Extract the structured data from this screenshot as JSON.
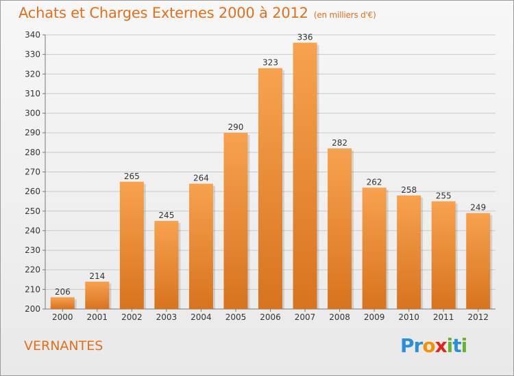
{
  "header": {
    "title": "Achats et Charges Externes 2000 à 2012",
    "unit": "(en milliers d'€)"
  },
  "footer": {
    "place": "VERNANTES",
    "logo_text": "Proxiti",
    "logo_letters": [
      {
        "ch": "P",
        "color": "#2a8fd6"
      },
      {
        "ch": "r",
        "color": "#2a8fd6"
      },
      {
        "ch": "o",
        "color": "#f39200"
      },
      {
        "ch": "x",
        "color": "#e2231a"
      },
      {
        "ch": "i",
        "color": "#66b32e"
      },
      {
        "ch": "t",
        "color": "#2a8fd6"
      },
      {
        "ch": "i",
        "color": "#66b32e"
      }
    ]
  },
  "colors": {
    "bar_top": "#f7a24f",
    "bar_bottom": "#d8731f",
    "accent": "#e2701b"
  },
  "chart_data": {
    "type": "bar",
    "categories": [
      "2000",
      "2001",
      "2002",
      "2003",
      "2004",
      "2005",
      "2006",
      "2007",
      "2008",
      "2009",
      "2010",
      "2011",
      "2012"
    ],
    "values": [
      206,
      214,
      265,
      245,
      264,
      290,
      323,
      336,
      282,
      262,
      258,
      255,
      249
    ],
    "ylim": [
      200,
      340
    ],
    "yticks": [
      200,
      210,
      220,
      230,
      240,
      250,
      260,
      270,
      280,
      290,
      300,
      310,
      320,
      330,
      340
    ],
    "grid": true,
    "legend": "none",
    "data_labels": true
  }
}
